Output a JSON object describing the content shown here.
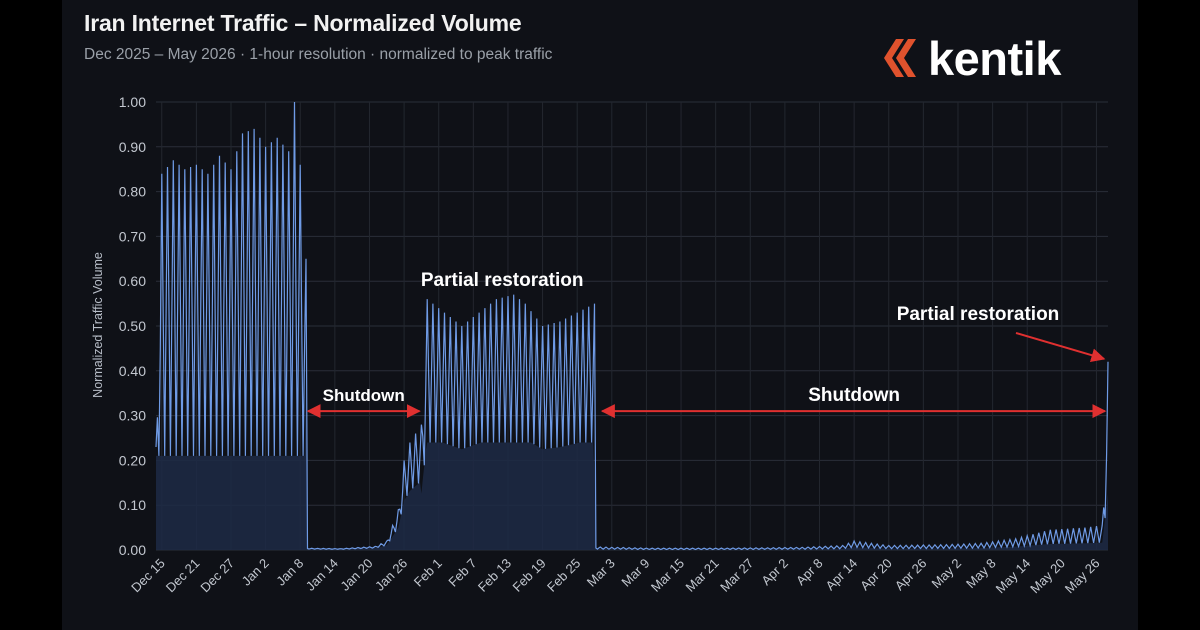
{
  "title": "Iran Internet Traffic – Normalized Volume",
  "subtitle": "Dec 2025 – May 2026  ·  1-hour resolution  ·  normalized to peak traffic",
  "brand": {
    "name": "kentik",
    "accent": "#e0522d"
  },
  "colors": {
    "background": "#0f1117",
    "line": "#6f9be6",
    "fill": "#1d2a45",
    "annotation": "#e03030",
    "grid": "#2a2e38"
  },
  "chart_data": {
    "type": "line",
    "ylabel": "Normalized Traffic Volume",
    "ylim": [
      0,
      1
    ],
    "yticks": [
      "0.00",
      "0.10",
      "0.20",
      "0.30",
      "0.40",
      "0.50",
      "0.60",
      "0.70",
      "0.80",
      "0.90",
      "1.00"
    ],
    "xticks": [
      "Dec 15",
      "Dec 21",
      "Dec 27",
      "Jan 2",
      "Jan 8",
      "Jan 14",
      "Jan 20",
      "Jan 26",
      "Feb 1",
      "Feb 7",
      "Feb 13",
      "Feb 19",
      "Feb 25",
      "Mar 3",
      "Mar 9",
      "Mar 15",
      "Mar 21",
      "Mar 27",
      "Apr 2",
      "Apr 8",
      "Apr 14",
      "Apr 20",
      "Apr 26",
      "May 2",
      "May 8",
      "May 14",
      "May 20",
      "May 26"
    ],
    "x_range": [
      "2025-12-14",
      "2026-05-28"
    ],
    "grid": true,
    "series": [
      {
        "points": [
          [
            "2025-12-14",
            0.23
          ],
          [
            "2025-12-15",
            0.84
          ],
          [
            "2025-12-17",
            0.87
          ],
          [
            "2025-12-19",
            0.85
          ],
          [
            "2025-12-21",
            0.86
          ],
          [
            "2025-12-23",
            0.84
          ],
          [
            "2025-12-25",
            0.88
          ],
          [
            "2025-12-27",
            0.85
          ],
          [
            "2025-12-29",
            0.93
          ],
          [
            "2025-12-31",
            0.94
          ],
          [
            "2026-01-02",
            0.9
          ],
          [
            "2026-01-04",
            0.92
          ],
          [
            "2026-01-06",
            0.89
          ],
          [
            "2026-01-07",
            1.0
          ],
          [
            "2026-01-08",
            0.86
          ],
          [
            "2026-01-09",
            0.65
          ],
          [
            "2026-01-09",
            0.004
          ],
          [
            "2026-01-15",
            0.003
          ],
          [
            "2026-01-21",
            0.008
          ],
          [
            "2026-01-23",
            0.02
          ],
          [
            "2026-01-25",
            0.09
          ],
          [
            "2026-01-26",
            0.2
          ],
          [
            "2026-01-27",
            0.24
          ],
          [
            "2026-01-29",
            0.28
          ],
          [
            "2026-01-30",
            0.56
          ],
          [
            "2026-02-02",
            0.53
          ],
          [
            "2026-02-05",
            0.5
          ],
          [
            "2026-02-08",
            0.53
          ],
          [
            "2026-02-11",
            0.56
          ],
          [
            "2026-02-14",
            0.57
          ],
          [
            "2026-02-16",
            0.55
          ],
          [
            "2026-02-19",
            0.5
          ],
          [
            "2026-02-22",
            0.51
          ],
          [
            "2026-02-25",
            0.53
          ],
          [
            "2026-02-28",
            0.55
          ],
          [
            "2026-02-28",
            0.007
          ],
          [
            "2026-03-10",
            0.004
          ],
          [
            "2026-03-20",
            0.004
          ],
          [
            "2026-03-30",
            0.005
          ],
          [
            "2026-04-05",
            0.006
          ],
          [
            "2026-04-12",
            0.01
          ],
          [
            "2026-04-14",
            0.02
          ],
          [
            "2026-04-20",
            0.01
          ],
          [
            "2026-04-30",
            0.012
          ],
          [
            "2026-05-06",
            0.015
          ],
          [
            "2026-05-12",
            0.025
          ],
          [
            "2026-05-18",
            0.045
          ],
          [
            "2026-05-24",
            0.05
          ],
          [
            "2026-05-27",
            0.055
          ],
          [
            "2026-05-28",
            0.42
          ]
        ]
      }
    ],
    "annotations": [
      {
        "text": "Shutdown",
        "from": "2026-01-09",
        "to": "2026-01-29",
        "y": 0.31
      },
      {
        "text": "Partial restoration",
        "y": 0.6
      },
      {
        "text": "Shutdown",
        "from": "2026-03-01",
        "to": "2026-05-28",
        "y": 0.31
      },
      {
        "text": "Partial restoration",
        "target_x": "2026-05-28",
        "target_y": 0.42
      }
    ]
  }
}
